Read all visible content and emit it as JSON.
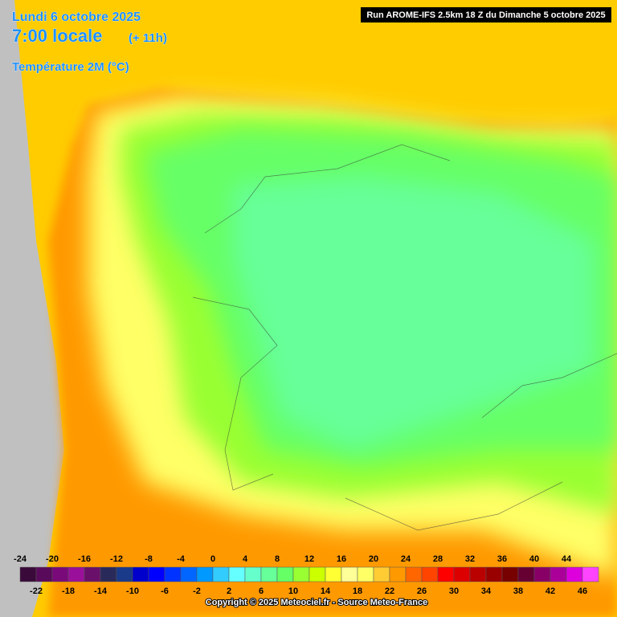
{
  "header": {
    "date": "Lundi 6 octobre 2025",
    "time": "7:00 locale",
    "offset": "(+ 11h)",
    "parameter": "Température 2M (°C)",
    "run": "Run AROME-IFS 2.5km 18 Z du Dimanche 5 octobre 2025"
  },
  "legend": {
    "top_labels": [
      -24,
      -20,
      -16,
      -12,
      -8,
      -4,
      0,
      4,
      8,
      12,
      16,
      20,
      24,
      28,
      32,
      36,
      40,
      44
    ],
    "bottom_labels": [
      -22,
      -18,
      -14,
      -10,
      -6,
      -2,
      2,
      6,
      10,
      14,
      18,
      22,
      26,
      30,
      34,
      38,
      42,
      46
    ],
    "colors": [
      "#3a0a3a",
      "#5a0a5a",
      "#7a0a7a",
      "#9a109a",
      "#6a106a",
      "#2a2a5a",
      "#1a3a8a",
      "#0000cc",
      "#0000ff",
      "#0033ff",
      "#0066ff",
      "#0099ff",
      "#33ccff",
      "#66ffff",
      "#66ffcc",
      "#66ff99",
      "#66ff66",
      "#99ff33",
      "#ccff00",
      "#ffff33",
      "#ffff99",
      "#ffff66",
      "#ffcc33",
      "#ff9900",
      "#ff6600",
      "#ff4400",
      "#ff0000",
      "#dd0000",
      "#bb0000",
      "#990000",
      "#770000",
      "#660033",
      "#880066",
      "#aa0099",
      "#dd00dd",
      "#ff44ff"
    ]
  },
  "footer": {
    "copyright": "Copyright © 2025 Meteociel.fr - Source Meteo-France"
  }
}
